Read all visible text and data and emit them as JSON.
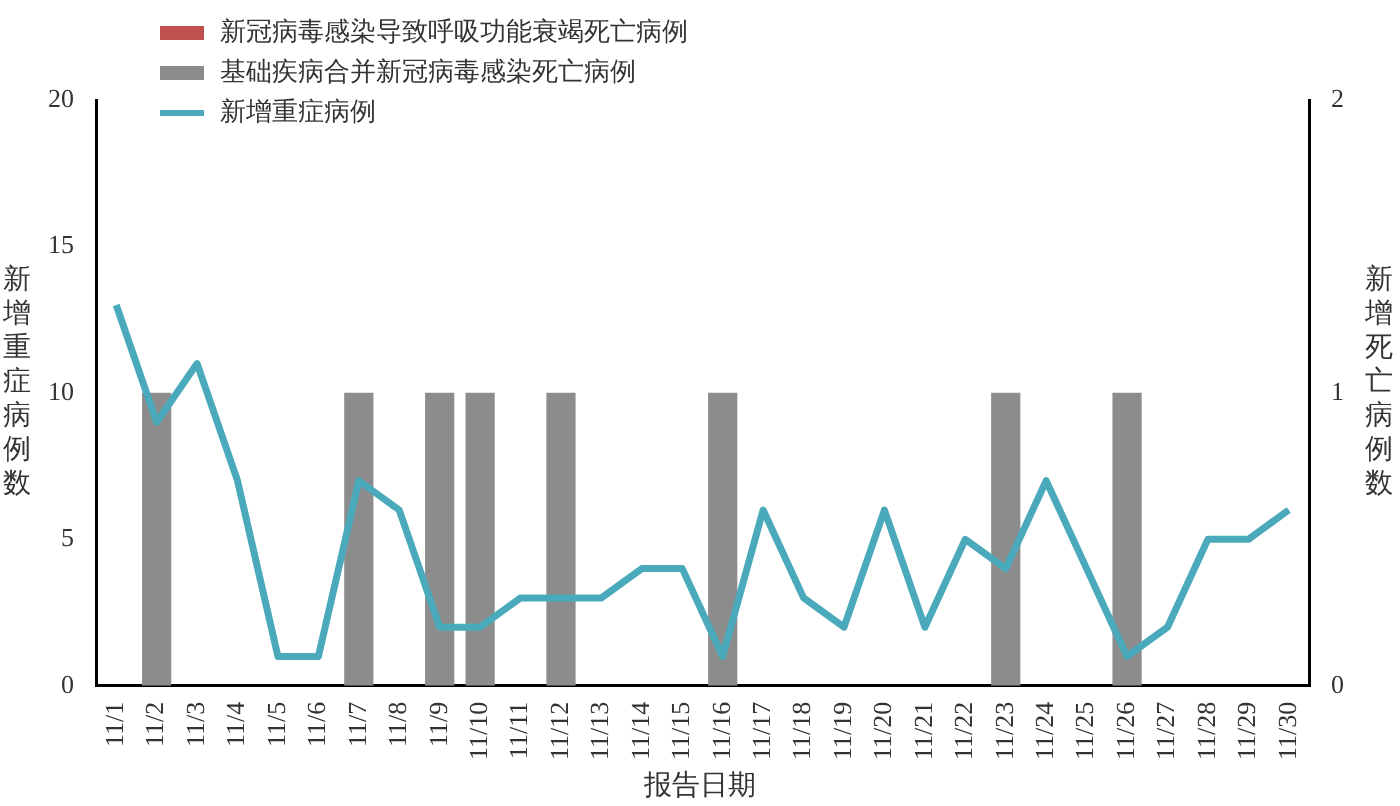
{
  "chart_data": {
    "type": "bar",
    "xlabel": "报告日期",
    "ylabel": "新增重症病例数",
    "y2label": "新增死亡病例数",
    "categories": [
      "11/1",
      "11/2",
      "11/3",
      "11/4",
      "11/5",
      "11/6",
      "11/7",
      "11/8",
      "11/9",
      "11/10",
      "11/11",
      "11/12",
      "11/13",
      "11/14",
      "11/15",
      "11/16",
      "11/17",
      "11/18",
      "11/19",
      "11/20",
      "11/21",
      "11/22",
      "11/23",
      "11/24",
      "11/25",
      "11/26",
      "11/27",
      "11/28",
      "11/29",
      "11/30"
    ],
    "series": [
      {
        "name": "新冠病毒感染导致呼吸功能衰竭死亡病例",
        "axis": "y2",
        "color": "#c0504d",
        "values": [
          0,
          0,
          0,
          0,
          0,
          0,
          0,
          0,
          0,
          0,
          0,
          0,
          0,
          0,
          0,
          0,
          0,
          0,
          0,
          0,
          0,
          0,
          0,
          0,
          0,
          0,
          0,
          0,
          0,
          0
        ]
      },
      {
        "name": "基础疾病合并新冠病毒感染死亡病例",
        "axis": "y2",
        "color": "#8c8c8c",
        "values": [
          0,
          1,
          0,
          0,
          0,
          0,
          1,
          0,
          1,
          1,
          0,
          1,
          0,
          0,
          0,
          1,
          0,
          0,
          0,
          0,
          0,
          0,
          1,
          0,
          0,
          1,
          0,
          0,
          0,
          0
        ]
      },
      {
        "name": "新增重症病例",
        "type": "line",
        "color": "#4aaabb",
        "values": [
          13,
          9,
          11,
          7,
          1,
          1,
          7,
          6,
          2,
          2,
          3,
          3,
          3,
          4,
          4,
          1,
          6,
          3,
          2,
          6,
          2,
          5,
          4,
          7,
          4,
          1,
          2,
          5,
          5,
          6
        ]
      }
    ],
    "ylim": [
      0,
      20
    ],
    "yticks": [
      0,
      5,
      10,
      15,
      20
    ],
    "y2lim": [
      0,
      2
    ],
    "y2ticks": [
      0,
      1,
      2
    ],
    "stacked": true,
    "grid": false,
    "legend": "top left",
    "marker": "none",
    "line_style": "solid"
  }
}
